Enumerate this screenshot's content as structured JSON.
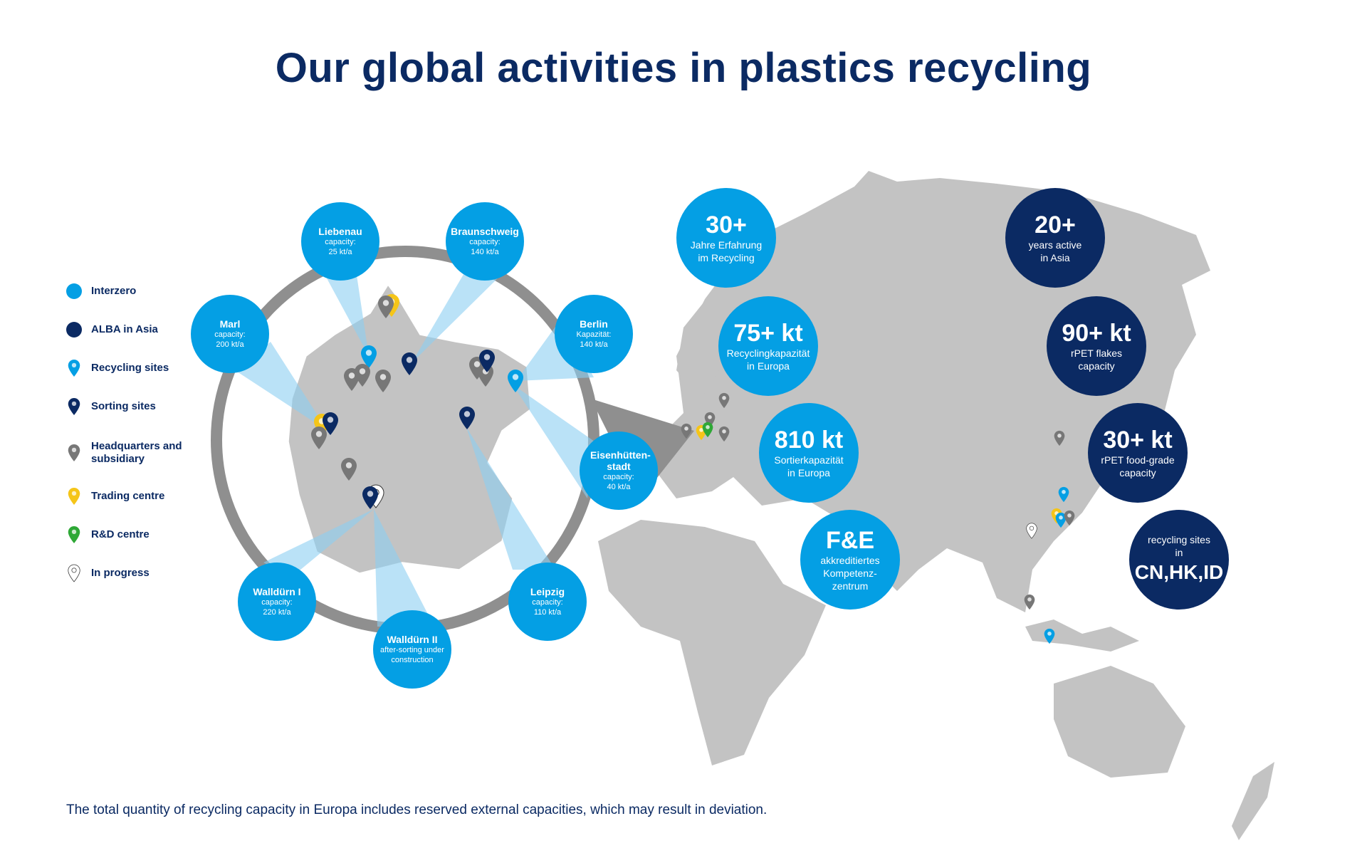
{
  "title": "Our global activities in plastics recycling",
  "colors": {
    "interzero": "#049fe4",
    "alba_asia": "#0b2a63",
    "recycling": "#049fe4",
    "sorting": "#0b2a63",
    "headquarters": "#777777",
    "trading": "#f5c518",
    "rnd": "#2ea836",
    "in_progress": "#ffffff",
    "map": "#c3c3c3",
    "ring": "#8f8f8f"
  },
  "legend": [
    {
      "label": "Interzero",
      "icon": "dot-light-blue"
    },
    {
      "label": "ALBA in Asia",
      "icon": "dot-dark-blue"
    },
    {
      "label": "Recycling sites",
      "icon": "pin-light-blue"
    },
    {
      "label": "Sorting sites",
      "icon": "pin-dark-blue"
    },
    {
      "label": "Headquarters and subsidiary",
      "icon": "pin-gray"
    },
    {
      "label": "Trading centre",
      "icon": "pin-yellow"
    },
    {
      "label": "R&D centre",
      "icon": "pin-green"
    },
    {
      "label": "In progress",
      "icon": "pin-outline"
    }
  ],
  "sites": [
    {
      "name": "Liebenau",
      "line1": "capacity:",
      "line2": "25 kt/a"
    },
    {
      "name": "Braunschweig",
      "line1": "capacity:",
      "line2": "140 kt/a"
    },
    {
      "name": "Marl",
      "line1": "capacity:",
      "line2": "200 kt/a"
    },
    {
      "name": "Berlin",
      "line1": "Kapazität:",
      "line2": "140 kt/a"
    },
    {
      "name": "Eisenhütten-stadt",
      "line1": "capacity:",
      "line2": "40 kt/a"
    },
    {
      "name": "Walldürn I",
      "line1": "capacity:",
      "line2": "220 kt/a"
    },
    {
      "name": "Walldürn II",
      "line1": "after-sorting under",
      "line2": "construction"
    },
    {
      "name": "Leipzig",
      "line1": "capacity:",
      "line2": "110 kt/a"
    }
  ],
  "stats_europe": [
    {
      "value": "30+",
      "line1": "Jahre Erfahrung",
      "line2": "im Recycling"
    },
    {
      "value": "75+ kt",
      "line1": "Recyclingkapazität",
      "line2": "in Europa"
    },
    {
      "value": "810 kt",
      "line1": "Sortierkapazität",
      "line2": "in Europa"
    },
    {
      "value": "F&E",
      "line1": "akkreditiertes",
      "line2": "Kompetenz-",
      "line3": "zentrum"
    }
  ],
  "stats_asia": [
    {
      "value": "20+",
      "line1": "years active",
      "line2": "in Asia"
    },
    {
      "value": "90+ kt",
      "line1": "rPET flakes",
      "line2": "capacity"
    },
    {
      "value": "30+ kt",
      "line1": "rPET food-grade",
      "line2": "capacity"
    },
    {
      "line1": "recycling sites",
      "line2": "in",
      "value": "CN,HK,ID"
    }
  ],
  "footer": "The total quantity of recycling capacity in Europa includes reserved external capacities, which may result in deviation."
}
